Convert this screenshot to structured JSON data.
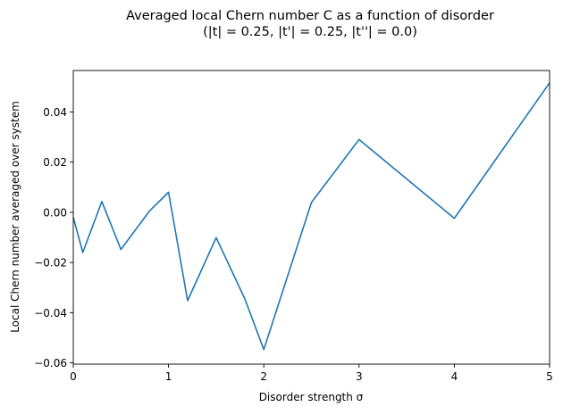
{
  "chart_data": {
    "type": "line",
    "title_line1": "Averaged local Chern number C as a function of disorder",
    "title_line2": "(|t| = 0.25, |t'| = 0.25, |t''| = 0.0)",
    "xlabel": "Disorder strength σ",
    "ylabel": "Local Chern number averaged over system",
    "xlim": [
      0,
      5
    ],
    "ylim": [
      -0.0605,
      0.0565
    ],
    "xticks": [
      0,
      1,
      2,
      3,
      4,
      5
    ],
    "xtick_labels": [
      "0",
      "1",
      "2",
      "3",
      "4",
      "5"
    ],
    "yticks": [
      -0.06,
      -0.04,
      -0.02,
      0.0,
      0.02,
      0.04
    ],
    "ytick_labels": [
      "−0.06",
      "−0.04",
      "−0.02",
      "0.00",
      "0.02",
      "0.04"
    ],
    "grid": false,
    "series": [
      {
        "color": "#1f77b4",
        "x": [
          0.0,
          0.1,
          0.3,
          0.5,
          0.8,
          1.0,
          1.2,
          1.5,
          1.8,
          2.0,
          2.5,
          3.0,
          4.0,
          5.0
        ],
        "y": [
          -0.002,
          -0.016,
          0.0043,
          -0.0148,
          0.0005,
          0.008,
          -0.0352,
          -0.0101,
          -0.0344,
          -0.0547,
          0.0039,
          0.029,
          -0.0024,
          0.0516
        ]
      }
    ]
  }
}
